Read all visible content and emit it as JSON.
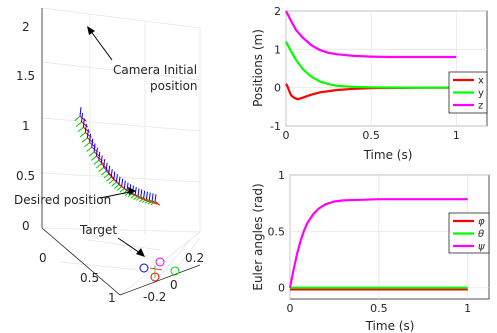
{
  "chart_data": [
    {
      "type": "line3d",
      "z_ticks": [
        "0",
        "0.5",
        "1",
        "1.5",
        "2"
      ],
      "depth_ticks": [
        "0",
        "0.5",
        "1"
      ],
      "x_ticks": [
        "-0.2",
        "0",
        "0.2"
      ],
      "annotations": [
        {
          "text": "Camera Initial",
          "text2": "position"
        },
        {
          "text": "Desired position"
        },
        {
          "text": "Target"
        }
      ],
      "colors": {
        "x_axis": "#ff0000",
        "y_axis": "#00cc00",
        "z_axis": "#0000ff",
        "target": "#ff00ff"
      },
      "trajectory_z": [
        2.05,
        1.95,
        1.86,
        1.77,
        1.68,
        1.6,
        1.52,
        1.44,
        1.37,
        1.3,
        1.24,
        1.18,
        1.12,
        1.07,
        1.02,
        0.98,
        0.94,
        0.9,
        0.87,
        0.84,
        0.81,
        0.79,
        0.77,
        0.75,
        0.73,
        0.72,
        0.7,
        0.69,
        0.68,
        0.67,
        0.66
      ]
    },
    {
      "type": "line",
      "ylabel": "Positions (m)",
      "xlabel": "Time (s)",
      "xlim": [
        0,
        1.18
      ],
      "ylim": [
        -1,
        2
      ],
      "x_ticks": [
        "0",
        "0.5",
        "1"
      ],
      "y_ticks": [
        "-1",
        "0",
        "1",
        "2"
      ],
      "legend": "right",
      "series": [
        {
          "name": "x",
          "color": "#ff0000",
          "x": [
            0,
            0.01,
            0.02,
            0.03,
            0.05,
            0.07,
            0.1,
            0.15,
            0.2,
            0.3,
            0.4,
            0.5,
            0.6,
            0.8,
            1.0
          ],
          "y": [
            0.1,
            0.02,
            -0.1,
            -0.2,
            -0.27,
            -0.3,
            -0.26,
            -0.18,
            -0.12,
            -0.06,
            -0.03,
            -0.015,
            -0.01,
            0,
            0
          ]
        },
        {
          "name": "y",
          "color": "#00ff00",
          "x": [
            0,
            0.03,
            0.06,
            0.1,
            0.15,
            0.2,
            0.25,
            0.3,
            0.4,
            0.5,
            0.6,
            0.8,
            1.0
          ],
          "y": [
            1.2,
            0.95,
            0.72,
            0.48,
            0.28,
            0.16,
            0.09,
            0.05,
            0.02,
            0.01,
            0.005,
            0,
            0
          ]
        },
        {
          "name": "z",
          "color": "#ff00ff",
          "x": [
            0,
            0.03,
            0.06,
            0.1,
            0.15,
            0.2,
            0.25,
            0.3,
            0.4,
            0.5,
            0.6,
            0.8,
            1.0
          ],
          "y": [
            2.0,
            1.74,
            1.5,
            1.3,
            1.1,
            0.98,
            0.91,
            0.87,
            0.83,
            0.81,
            0.8,
            0.8,
            0.8
          ]
        }
      ]
    },
    {
      "type": "line",
      "ylabel": "Euler angles (rad)",
      "xlabel": "Time (s)",
      "xlim": [
        0,
        1.12
      ],
      "ylim": [
        -0.1,
        1
      ],
      "x_ticks": [
        "0",
        "0.5",
        "1"
      ],
      "y_ticks": [
        "0",
        "0.5",
        "1"
      ],
      "legend": "right",
      "series": [
        {
          "name": "φ",
          "color": "#ff0000",
          "x": [
            0,
            0.2,
            0.4,
            0.6,
            0.8,
            1.0
          ],
          "y": [
            -0.015,
            -0.015,
            -0.015,
            -0.015,
            -0.015,
            -0.015
          ]
        },
        {
          "name": "θ",
          "color": "#00ff00",
          "x": [
            0,
            0.2,
            0.4,
            0.6,
            0.8,
            1.0
          ],
          "y": [
            0,
            0,
            0,
            0,
            0,
            0
          ]
        },
        {
          "name": "ψ",
          "color": "#ff00ff",
          "x": [
            0,
            0.02,
            0.04,
            0.06,
            0.08,
            0.1,
            0.13,
            0.16,
            0.2,
            0.25,
            0.3,
            0.4,
            0.5,
            0.7,
            1.0
          ],
          "y": [
            0,
            0.16,
            0.3,
            0.42,
            0.51,
            0.58,
            0.65,
            0.7,
            0.74,
            0.765,
            0.775,
            0.78,
            0.785,
            0.785,
            0.785
          ]
        }
      ]
    }
  ]
}
